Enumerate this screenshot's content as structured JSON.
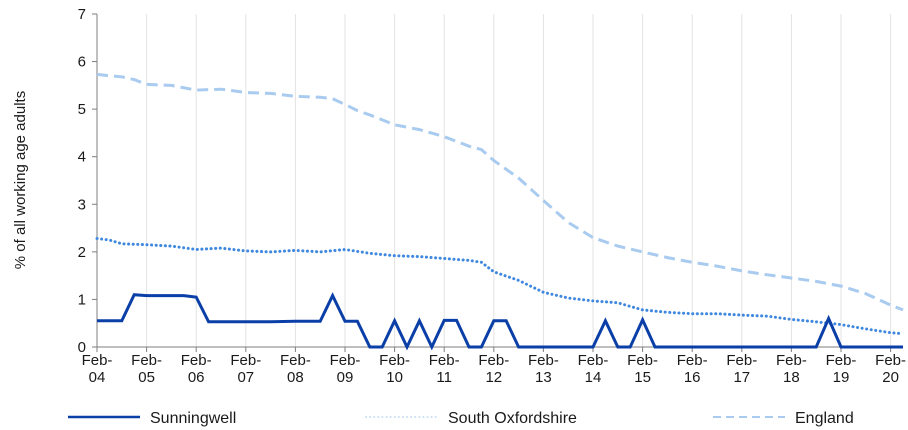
{
  "chart_data": {
    "type": "line",
    "title": "",
    "ylabel": "% of all working age adults",
    "xlabel": "",
    "ylim": [
      0,
      7
    ],
    "yticks": [
      0,
      1,
      2,
      3,
      4,
      5,
      6,
      7
    ],
    "grid": "vertical",
    "legend_position": "bottom",
    "x_tick_labels": [
      {
        "top": "Feb-",
        "bottom": "04"
      },
      {
        "top": "Feb-",
        "bottom": "05"
      },
      {
        "top": "Feb-",
        "bottom": "06"
      },
      {
        "top": "Feb-",
        "bottom": "07"
      },
      {
        "top": "Feb-",
        "bottom": "08"
      },
      {
        "top": "Feb-",
        "bottom": "09"
      },
      {
        "top": "Feb-",
        "bottom": "10"
      },
      {
        "top": "Feb-",
        "bottom": "11"
      },
      {
        "top": "Feb-",
        "bottom": "12"
      },
      {
        "top": "Feb-",
        "bottom": "13"
      },
      {
        "top": "Feb-",
        "bottom": "14"
      },
      {
        "top": "Feb-",
        "bottom": "15"
      },
      {
        "top": "Feb-",
        "bottom": "16"
      },
      {
        "top": "Feb-",
        "bottom": "17"
      },
      {
        "top": "Feb-",
        "bottom": "18"
      },
      {
        "top": "Feb-",
        "bottom": "19"
      },
      {
        "top": "Feb-",
        "bottom": "20"
      }
    ],
    "x_range": [
      2004,
      2020.25
    ],
    "series": [
      {
        "name": "Sunningwell",
        "color": "#0b3fa8",
        "style": "solid",
        "x": [
          2004.0,
          2004.5,
          2004.75,
          2005.0,
          2005.25,
          2005.5,
          2005.75,
          2006.0,
          2006.25,
          2006.5,
          2006.75,
          2007.0,
          2007.5,
          2008.0,
          2008.5,
          2008.75,
          2009.0,
          2009.25,
          2009.5,
          2009.75,
          2010.0,
          2010.25,
          2010.5,
          2010.75,
          2011.0,
          2011.25,
          2011.5,
          2011.75,
          2012.0,
          2012.25,
          2012.5,
          2013.0,
          2013.5,
          2014.0,
          2014.25,
          2014.5,
          2014.75,
          2015.0,
          2015.25,
          2015.5,
          2016.0,
          2016.5,
          2017.0,
          2017.5,
          2018.0,
          2018.5,
          2018.75,
          2019.0,
          2019.5,
          2020.0,
          2020.25
        ],
        "values": [
          0.55,
          0.55,
          1.1,
          1.08,
          1.08,
          1.08,
          1.08,
          1.05,
          0.53,
          0.53,
          0.53,
          0.53,
          0.53,
          0.54,
          0.54,
          1.08,
          0.54,
          0.54,
          0.0,
          0.0,
          0.55,
          0.0,
          0.55,
          0.0,
          0.56,
          0.56,
          0.0,
          0.0,
          0.55,
          0.55,
          0.0,
          0.0,
          0.0,
          0.0,
          0.55,
          0.0,
          0.0,
          0.57,
          0.0,
          0.0,
          0.0,
          0.0,
          0.0,
          0.0,
          0.0,
          0.0,
          0.6,
          0.0,
          0.0,
          0.0,
          0.0
        ]
      },
      {
        "name": "South Oxfordshire",
        "color": "#3f88e0",
        "style": "dotted",
        "x": [
          2004.0,
          2004.25,
          2004.5,
          2005.0,
          2005.5,
          2006.0,
          2006.5,
          2007.0,
          2007.5,
          2008.0,
          2008.5,
          2009.0,
          2009.5,
          2010.0,
          2010.5,
          2011.0,
          2011.5,
          2011.75,
          2012.0,
          2012.5,
          2013.0,
          2013.5,
          2014.0,
          2014.5,
          2015.0,
          2015.5,
          2016.0,
          2016.5,
          2017.0,
          2017.5,
          2018.0,
          2018.5,
          2019.0,
          2019.5,
          2020.0,
          2020.25
        ],
        "values": [
          2.28,
          2.25,
          2.17,
          2.15,
          2.12,
          2.05,
          2.08,
          2.02,
          2.0,
          2.03,
          2.0,
          2.05,
          1.97,
          1.92,
          1.9,
          1.86,
          1.82,
          1.78,
          1.58,
          1.4,
          1.15,
          1.03,
          0.97,
          0.93,
          0.78,
          0.73,
          0.7,
          0.7,
          0.67,
          0.65,
          0.58,
          0.53,
          0.47,
          0.38,
          0.3,
          0.28
        ]
      },
      {
        "name": "England",
        "color": "#a8cbef",
        "style": "dashed",
        "x": [
          2004.0,
          2004.25,
          2004.5,
          2004.75,
          2005.0,
          2005.5,
          2006.0,
          2006.5,
          2007.0,
          2007.5,
          2008.0,
          2008.5,
          2008.75,
          2009.0,
          2009.25,
          2009.5,
          2010.0,
          2010.5,
          2011.0,
          2011.5,
          2011.75,
          2012.0,
          2012.5,
          2013.0,
          2013.5,
          2014.0,
          2014.5,
          2015.0,
          2015.5,
          2016.0,
          2016.5,
          2017.0,
          2017.5,
          2018.0,
          2018.5,
          2019.0,
          2019.5,
          2020.0,
          2020.25
        ],
        "values": [
          5.73,
          5.7,
          5.68,
          5.62,
          5.52,
          5.5,
          5.4,
          5.42,
          5.35,
          5.33,
          5.27,
          5.25,
          5.22,
          5.1,
          4.97,
          4.88,
          4.67,
          4.57,
          4.42,
          4.22,
          4.15,
          3.92,
          3.55,
          3.08,
          2.62,
          2.3,
          2.12,
          2.0,
          1.88,
          1.78,
          1.7,
          1.6,
          1.52,
          1.45,
          1.38,
          1.28,
          1.12,
          0.88,
          0.78
        ]
      }
    ]
  }
}
